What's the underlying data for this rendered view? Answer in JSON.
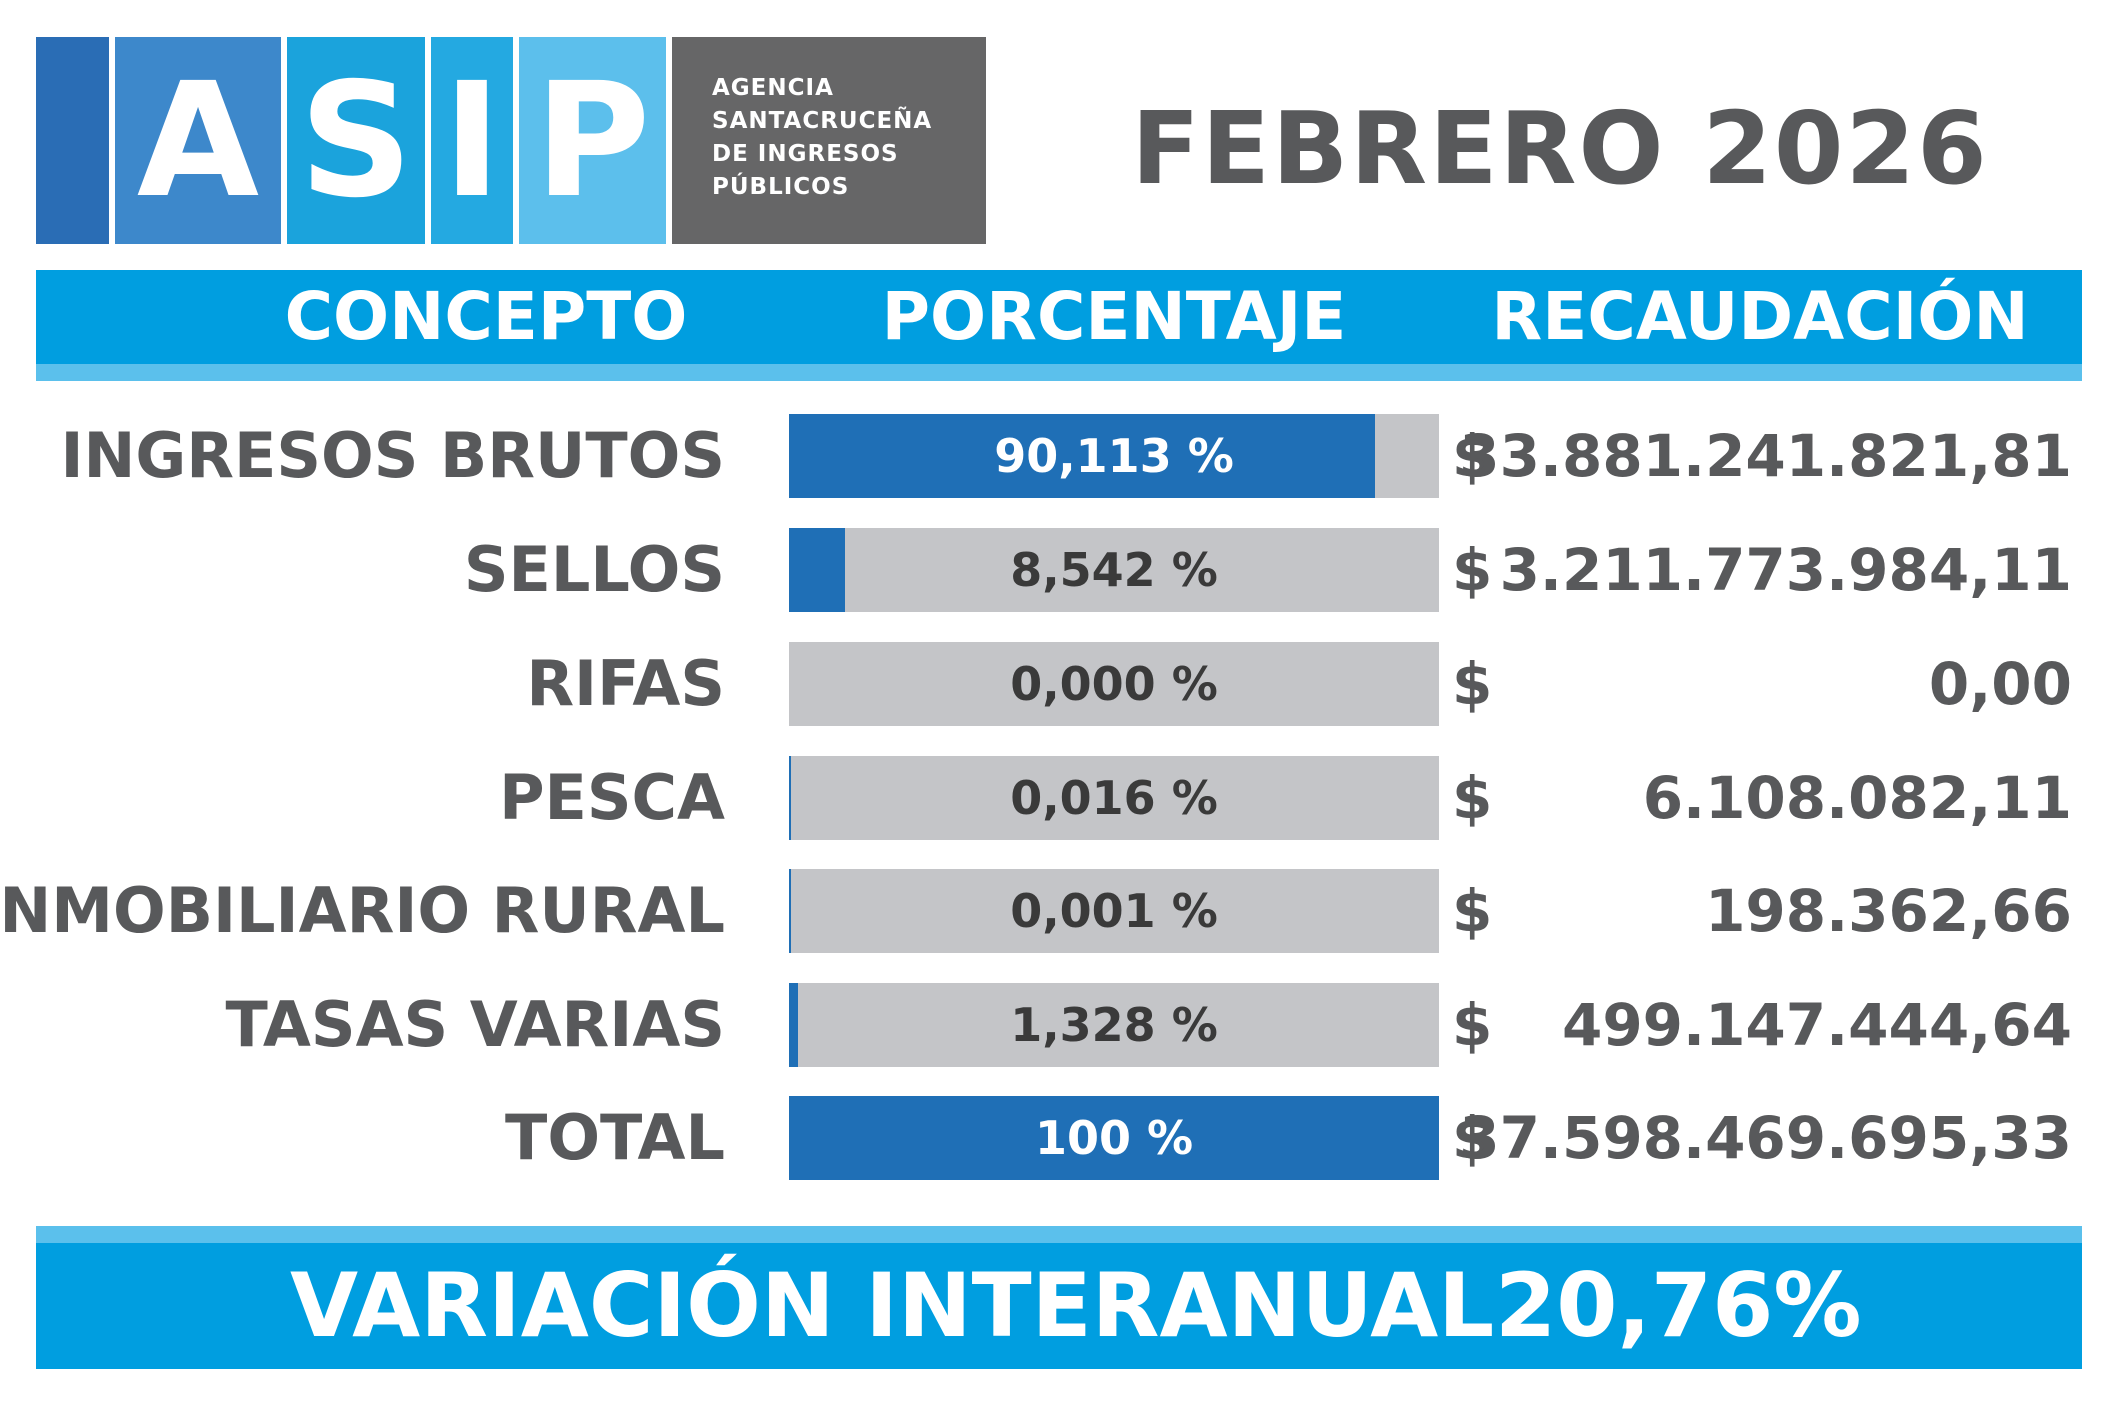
{
  "logo": {
    "letters": [
      "A",
      "S",
      "I",
      "P"
    ],
    "agency_lines": [
      "AGENCIA",
      "SANTACRUCEÑA",
      "DE INGRESOS",
      "PÚBLICOS"
    ]
  },
  "period": "FEBRERO 2026",
  "columns": {
    "concepto": "CONCEPTO",
    "porcentaje": "PORCENTAJE",
    "recaudacion": "RECAUDACIÓN"
  },
  "rows": [
    {
      "concepto": "INGRESOS BRUTOS",
      "porcentaje": "90,113 %",
      "currency": "$",
      "recaudacion": "33.881.241.821,81"
    },
    {
      "concepto": "SELLOS",
      "porcentaje": "8,542 %",
      "currency": "$",
      "recaudacion": "3.211.773.984,11"
    },
    {
      "concepto": "RIFAS",
      "porcentaje": "0,000 %",
      "currency": "$",
      "recaudacion": "0,00"
    },
    {
      "concepto": "PESCA",
      "porcentaje": "0,016 %",
      "currency": "$",
      "recaudacion": "6.108.082,11"
    },
    {
      "concepto": "INMOBILIARIO RURAL",
      "porcentaje": "0,001 %",
      "currency": "$",
      "recaudacion": "198.362,66"
    },
    {
      "concepto": "TASAS VARIAS",
      "porcentaje": "1,328 %",
      "currency": "$",
      "recaudacion": "499.147.444,64"
    },
    {
      "concepto": "TOTAL",
      "porcentaje": "100 %",
      "currency": "$",
      "recaudacion": "37.598.469.695,33"
    }
  ],
  "footer": {
    "label": "VARIACIÓN INTERANUAL",
    "value": "20,76%"
  },
  "colors": {
    "bar_fill": "#1f6fb6",
    "bar_track": "#c4c5c8",
    "header_band": "#009ee0",
    "header_stripe": "#5bc0ec",
    "text_gray": "#58595b",
    "logo_a": "#2a6db5",
    "logo_s": "#3d88cb",
    "logo_i": "#1ba3dc",
    "logo_p": "#5cbfec",
    "logo_gray": "#666667"
  },
  "chart_data": {
    "type": "bar",
    "categories": [
      "INGRESOS BRUTOS",
      "SELLOS",
      "RIFAS",
      "PESCA",
      "INMOBILIARIO RURAL",
      "TASAS VARIAS",
      "TOTAL"
    ],
    "values": [
      90.113,
      8.542,
      0.0,
      0.016,
      0.001,
      1.328,
      100
    ],
    "recaudacion_values": [
      33881241821.81,
      3211773984.11,
      0.0,
      6108082.11,
      198362.66,
      499147444.64,
      37598469695.33
    ],
    "xlim": [
      0,
      100
    ],
    "orientation": "horizontal"
  }
}
